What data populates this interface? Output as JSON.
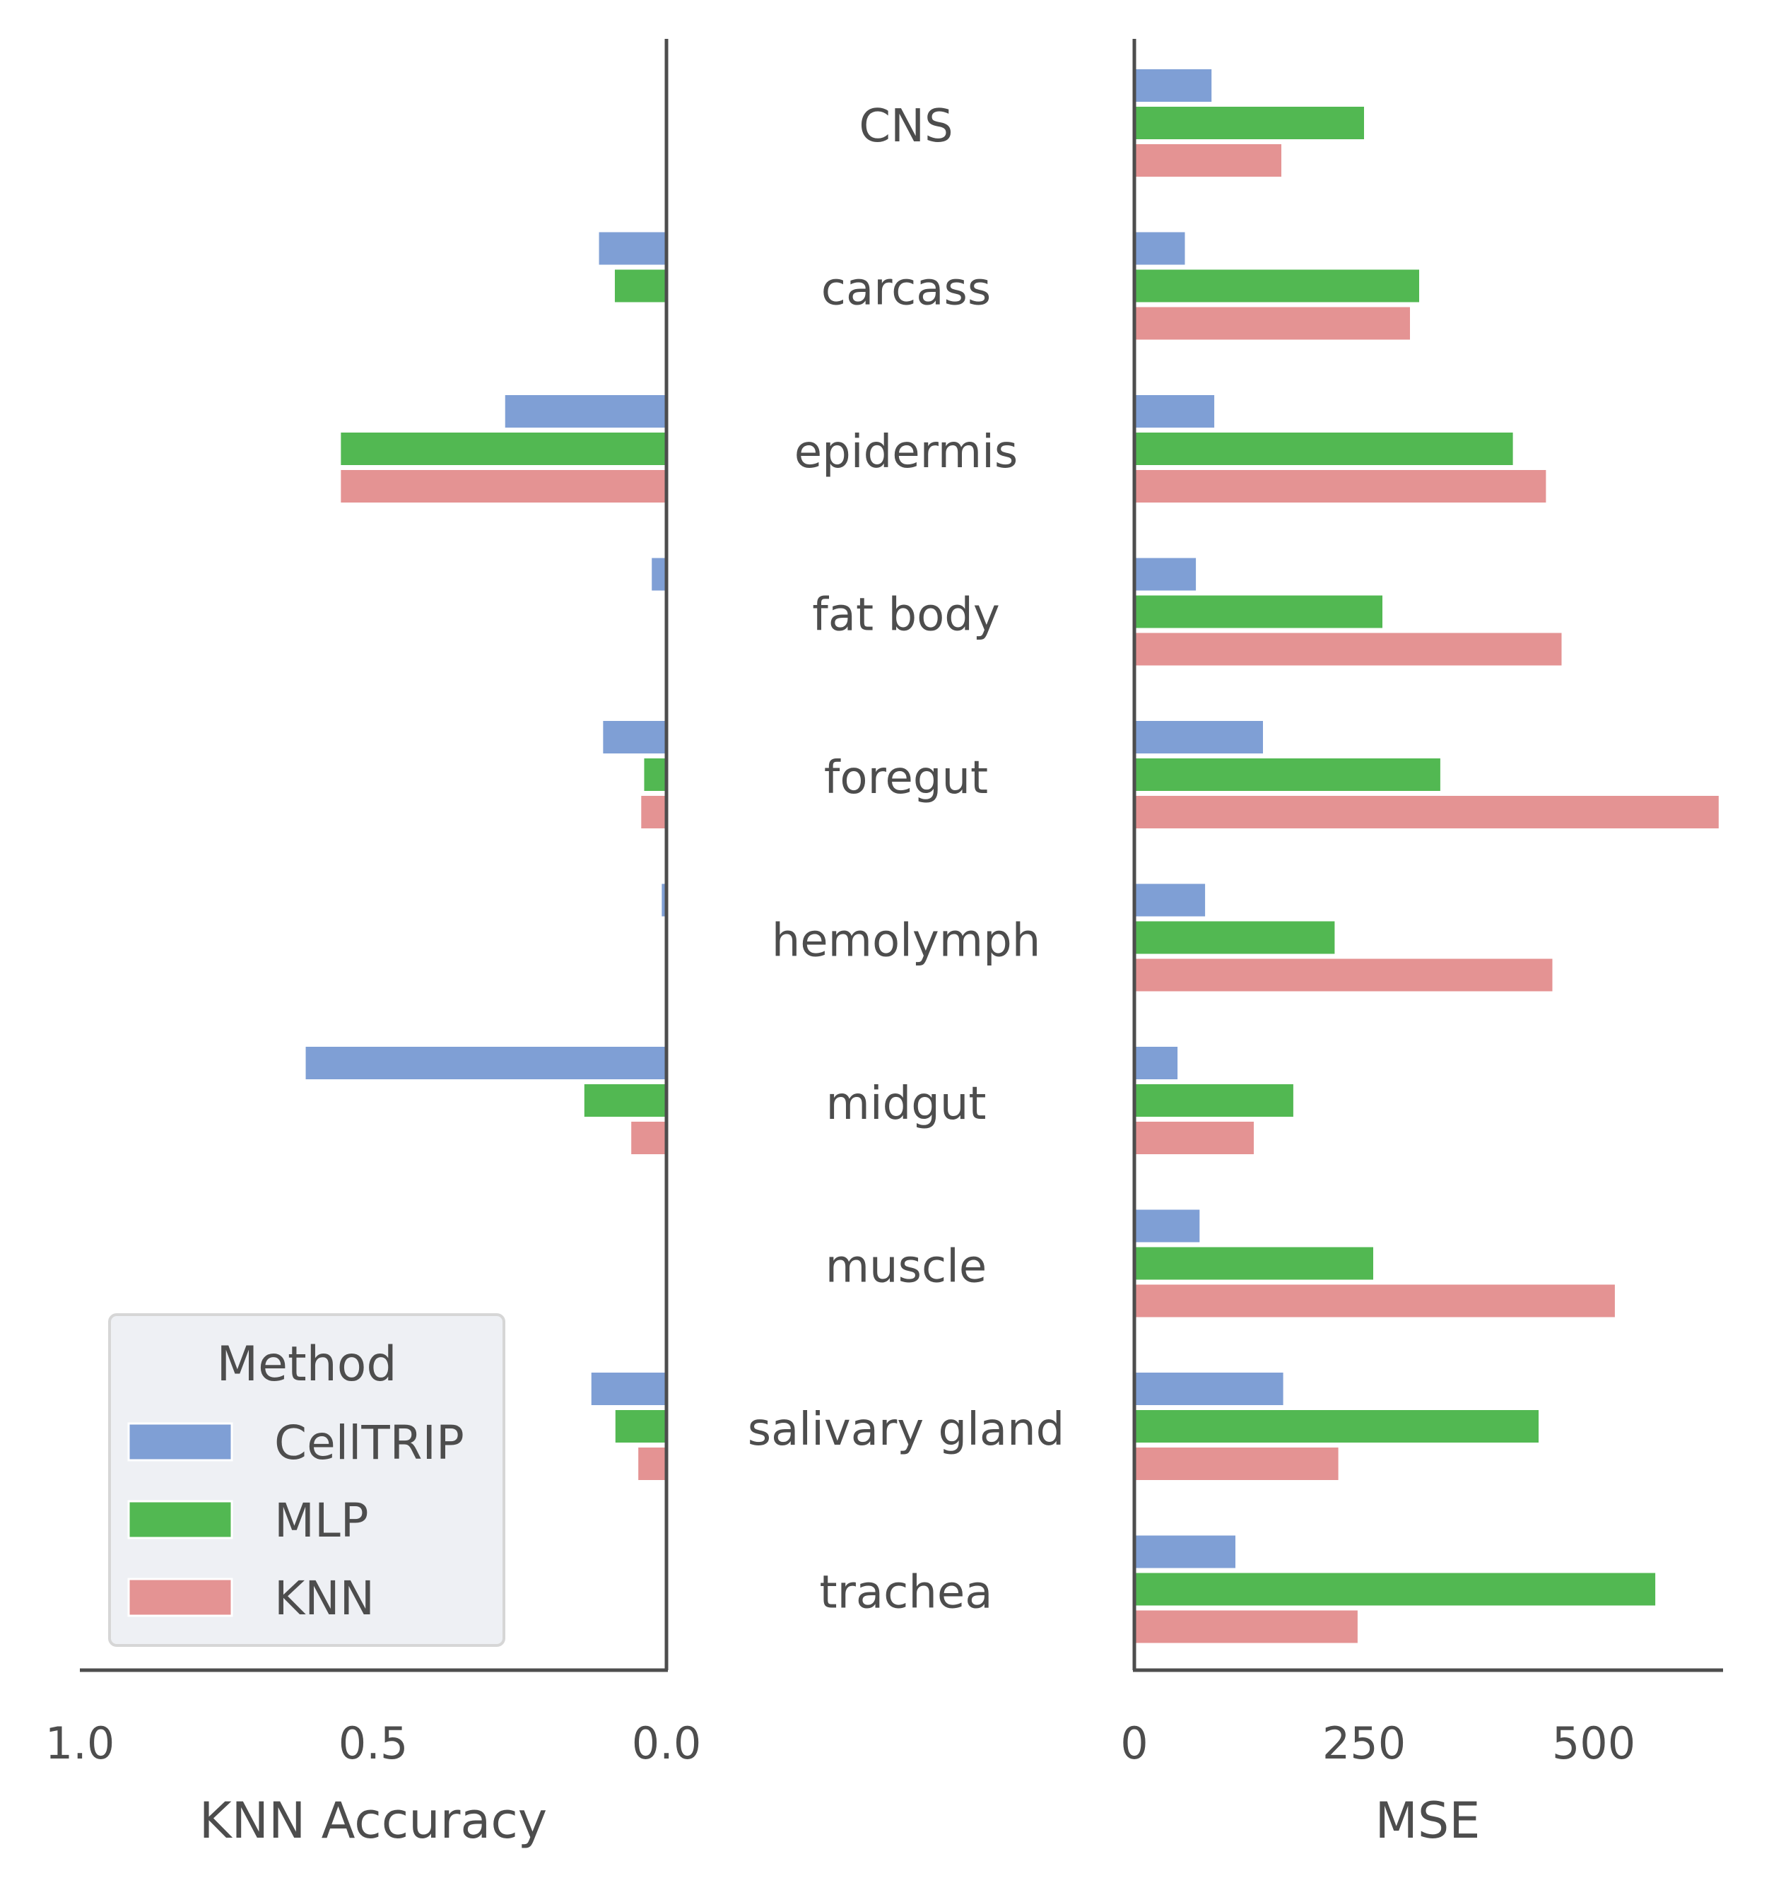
{
  "chart_data": [
    {
      "type": "bar",
      "orientation": "horizontal",
      "axis_direction": "reversed",
      "xlabel": "KNN Accuracy",
      "xlim": [
        1.0,
        0.0
      ],
      "xticks": [
        "1.0",
        "0.5",
        "0.0"
      ],
      "categories": [
        "CNS",
        "carcass",
        "epidermis",
        "fat body",
        "foregut",
        "hemolymph",
        "midgut",
        "muscle",
        "salivary gland",
        "trachea"
      ],
      "series": [
        {
          "name": "CellTRIP",
          "color": "#7f9fd5",
          "values": [
            0.0,
            0.115,
            0.275,
            0.025,
            0.108,
            0.008,
            0.615,
            0.0,
            0.128,
            0.0
          ]
        },
        {
          "name": "MLP",
          "color": "#52b852",
          "values": [
            0.0,
            0.088,
            0.555,
            0.0,
            0.038,
            0.0,
            0.14,
            0.0,
            0.087,
            0.0
          ]
        },
        {
          "name": "KNN",
          "color": "#e49393",
          "values": [
            0.0,
            0.0,
            0.555,
            0.0,
            0.043,
            0.0,
            0.06,
            0.0,
            0.048,
            0.003
          ]
        }
      ],
      "legend": {
        "title": "Method",
        "placement": "lower-left"
      }
    },
    {
      "type": "bar",
      "orientation": "horizontal",
      "xlabel": "MSE",
      "xlim": [
        0,
        670
      ],
      "xticks": [
        "0",
        "250",
        "500"
      ],
      "categories": [
        "CNS",
        "carcass",
        "epidermis",
        "fat body",
        "foregut",
        "hemolymph",
        "midgut",
        "muscle",
        "salivary gland",
        "trachea"
      ],
      "series": [
        {
          "name": "CellTRIP",
          "color": "#7f9fd5",
          "values": [
            84,
            55,
            87,
            67,
            140,
            77,
            47,
            71,
            162,
            110
          ]
        },
        {
          "name": "MLP",
          "color": "#52b852",
          "values": [
            250,
            310,
            412,
            270,
            333,
            218,
            173,
            260,
            440,
            567
          ]
        },
        {
          "name": "KNN",
          "color": "#e49393",
          "values": [
            160,
            300,
            448,
            465,
            636,
            455,
            130,
            523,
            222,
            243
          ]
        }
      ]
    }
  ]
}
